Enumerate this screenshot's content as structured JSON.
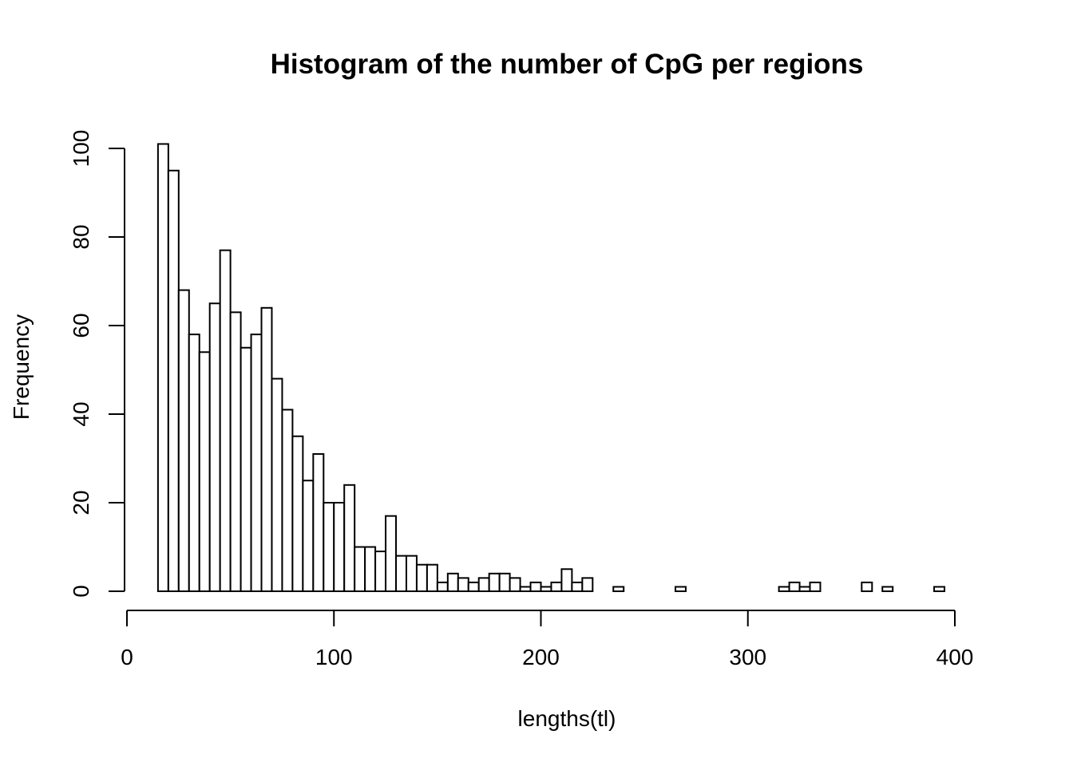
{
  "chart_data": {
    "type": "bar",
    "title": "Histogram of the number of CpG per regions",
    "xlabel": "lengths(tl)",
    "ylabel": "Frequency",
    "xlim": [
      0,
      400
    ],
    "ylim": [
      0,
      100
    ],
    "x_ticks": [
      0,
      100,
      200,
      300,
      400
    ],
    "y_ticks": [
      0,
      20,
      40,
      60,
      80,
      100
    ],
    "x_tick_labels": [
      "0",
      "100",
      "200",
      "300",
      "400"
    ],
    "y_tick_labels": [
      "0",
      "20",
      "40",
      "60",
      "80",
      "100"
    ],
    "grid": false,
    "legend": "none",
    "bin_width": 5,
    "bin_start": 15,
    "bin_end": 410,
    "values": [
      101,
      95,
      68,
      58,
      54,
      65,
      77,
      63,
      55,
      58,
      64,
      48,
      41,
      35,
      25,
      31,
      20,
      20,
      24,
      10,
      10,
      9,
      17,
      8,
      8,
      6,
      6,
      2,
      4,
      3,
      2,
      3,
      4,
      4,
      3,
      1,
      2,
      1,
      2,
      5,
      2,
      3,
      0,
      0,
      1,
      0,
      0,
      0,
      0,
      0,
      1,
      0,
      0,
      0,
      0,
      0,
      0,
      0,
      0,
      0,
      1,
      2,
      1,
      2,
      0,
      0,
      0,
      0,
      2,
      0,
      1,
      0,
      0,
      0,
      0,
      1,
      0,
      0,
      0
    ]
  }
}
